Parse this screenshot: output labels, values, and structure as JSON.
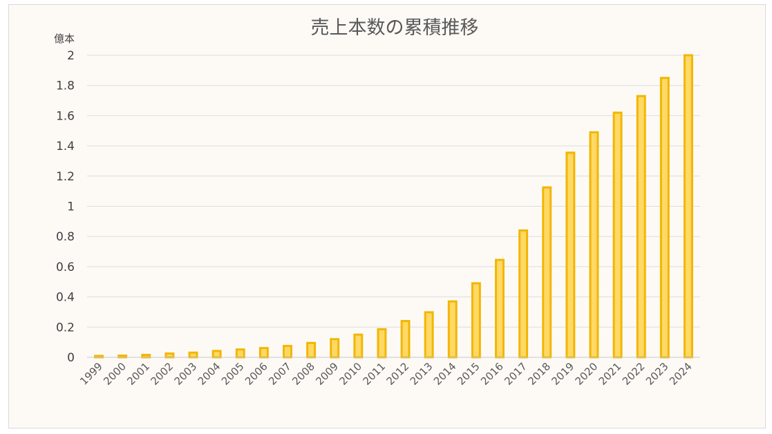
{
  "chart_data": {
    "type": "bar",
    "title": "売上本数の累積推移",
    "ylabel": "億本",
    "ylim": [
      0,
      2
    ],
    "yticks": [
      "0",
      "0.2",
      "0.4",
      "0.6",
      "0.8",
      "1",
      "1.2",
      "1.4",
      "1.6",
      "1.8",
      "2"
    ],
    "grid": true,
    "legend": "none",
    "categories": [
      "1999",
      "2000",
      "2001",
      "2002",
      "2003",
      "2004",
      "2005",
      "2006",
      "2007",
      "2008",
      "2009",
      "2010",
      "2011",
      "2012",
      "2013",
      "2014",
      "2015",
      "2016",
      "2017",
      "2018",
      "2019",
      "2020",
      "2021",
      "2022",
      "2023",
      "2024"
    ],
    "values": [
      0.004,
      0.011,
      0.016,
      0.025,
      0.031,
      0.042,
      0.052,
      0.061,
      0.075,
      0.095,
      0.12,
      0.15,
      0.186,
      0.24,
      0.298,
      0.37,
      0.49,
      0.645,
      0.84,
      1.125,
      1.355,
      1.49,
      1.62,
      1.73,
      1.85,
      2.0
    ],
    "colors": {
      "bar_fill": "#ffd966",
      "bar_stroke": "#f2b600"
    }
  }
}
